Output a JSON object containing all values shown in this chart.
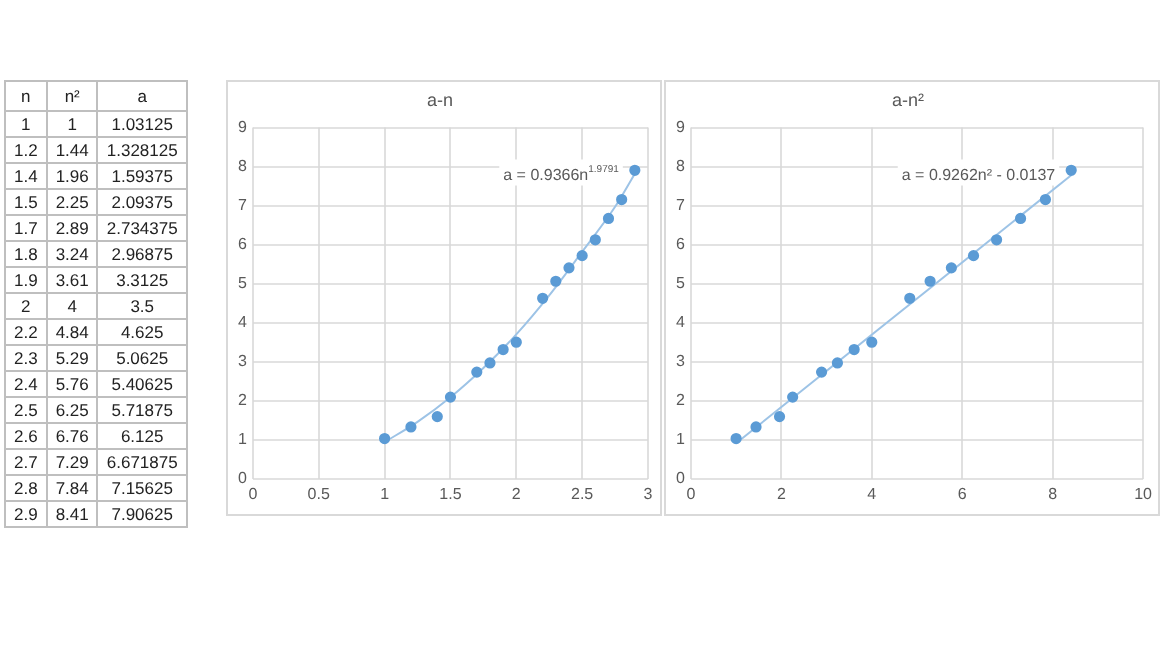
{
  "chart_data": [
    {
      "type": "other",
      "categories": [
        "n",
        "n²",
        "a"
      ],
      "cell_labels": [
        [
          "1",
          "1",
          "1.03125"
        ],
        [
          "1.2",
          "1.44",
          "1.328125"
        ],
        [
          "1.4",
          "1.96",
          "1.59375"
        ],
        [
          "1.5",
          "2.25",
          "2.09375"
        ],
        [
          "1.7",
          "2.89",
          "2.734375"
        ],
        [
          "1.8",
          "3.24",
          "2.96875"
        ],
        [
          "1.9",
          "3.61",
          "3.3125"
        ],
        [
          "2",
          "4",
          "3.5"
        ],
        [
          "2.2",
          "4.84",
          "4.625"
        ],
        [
          "2.3",
          "5.29",
          "5.0625"
        ],
        [
          "2.4",
          "5.76",
          "5.40625"
        ],
        [
          "2.5",
          "6.25",
          "5.71875"
        ],
        [
          "2.6",
          "6.76",
          "6.125"
        ],
        [
          "2.7",
          "7.29",
          "6.671875"
        ],
        [
          "2.8",
          "7.84",
          "7.15625"
        ],
        [
          "2.9",
          "8.41",
          "7.90625"
        ]
      ]
    },
    {
      "type": "scatter",
      "title": "a-n",
      "x": [
        1,
        1.2,
        1.4,
        1.5,
        1.7,
        1.8,
        1.9,
        2,
        2.2,
        2.3,
        2.4,
        2.5,
        2.6,
        2.7,
        2.8,
        2.9
      ],
      "xlim": [
        0,
        3
      ],
      "xticks": [
        0,
        0.5,
        1,
        1.5,
        2,
        2.5,
        3
      ],
      "ylim": [
        0,
        9
      ],
      "yticks": [
        0,
        1,
        2,
        3,
        4,
        5,
        6,
        7,
        8,
        9
      ],
      "grid": true,
      "legend": false,
      "annotations": [
        "a = 0.9366n$^{1.9791}$"
      ],
      "series": [
        {
          "color": "#5b9bd5",
          "marker": "circle",
          "values": [
            1.03125,
            1.328125,
            1.59375,
            2.09375,
            2.734375,
            2.96875,
            3.3125,
            3.5,
            4.625,
            5.0625,
            5.40625,
            5.71875,
            6.125,
            6.671875,
            7.15625,
            7.90625
          ]
        },
        {
          "type": "line",
          "marker": "none",
          "color": "#9dc3e6",
          "x": [
            1,
            1.25,
            1.5,
            1.75,
            2,
            2.25,
            2.5,
            2.75,
            2.9
          ],
          "values": [
            0.94,
            1.46,
            2.09,
            2.84,
            3.7,
            4.7,
            5.82,
            6.97,
            7.82
          ]
        }
      ]
    },
    {
      "type": "scatter",
      "title": "a-n²",
      "x": [
        1,
        1.44,
        1.96,
        2.25,
        2.89,
        3.24,
        3.61,
        4,
        4.84,
        5.29,
        5.76,
        6.25,
        6.76,
        7.29,
        7.84,
        8.41
      ],
      "xlim": [
        0,
        10
      ],
      "xticks": [
        0,
        2,
        4,
        6,
        8,
        10
      ],
      "ylim": [
        0,
        9
      ],
      "yticks": [
        0,
        1,
        2,
        3,
        4,
        5,
        6,
        7,
        8,
        9
      ],
      "grid": true,
      "legend": false,
      "annotations": [
        "a = 0.9262n² - 0.0137"
      ],
      "series": [
        {
          "color": "#5b9bd5",
          "marker": "circle",
          "values": [
            1.03125,
            1.328125,
            1.59375,
            2.09375,
            2.734375,
            2.96875,
            3.3125,
            3.5,
            4.625,
            5.0625,
            5.40625,
            5.71875,
            6.125,
            6.671875,
            7.15625,
            7.90625
          ]
        },
        {
          "type": "line",
          "marker": "none",
          "color": "#9dc3e6",
          "x": [
            1,
            8.41
          ],
          "values": [
            0.91,
            7.78
          ]
        }
      ]
    }
  ]
}
